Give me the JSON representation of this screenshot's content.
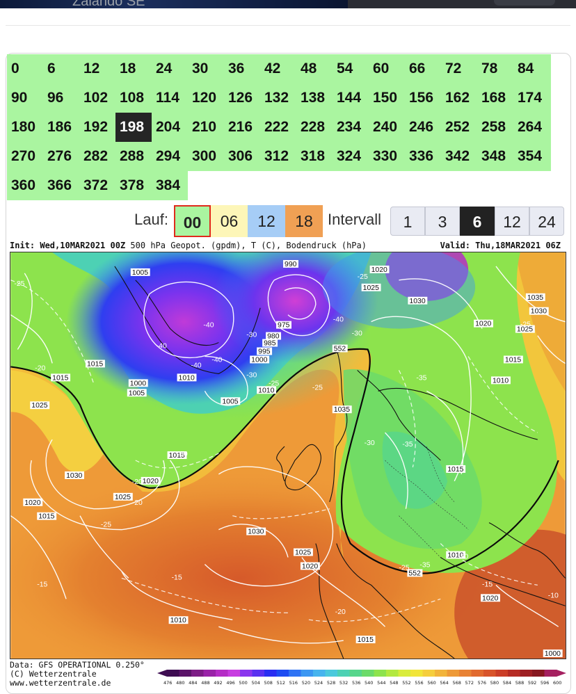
{
  "top": {
    "partial_text": "Zalando SE"
  },
  "steps": {
    "values": [
      "0",
      "6",
      "12",
      "18",
      "24",
      "30",
      "36",
      "42",
      "48",
      "54",
      "60",
      "66",
      "72",
      "78",
      "84",
      "90",
      "96",
      "102",
      "108",
      "114",
      "120",
      "126",
      "132",
      "138",
      "144",
      "150",
      "156",
      "162",
      "168",
      "174",
      "180",
      "186",
      "192",
      "198",
      "204",
      "210",
      "216",
      "222",
      "228",
      "234",
      "240",
      "246",
      "252",
      "258",
      "264",
      "270",
      "276",
      "282",
      "288",
      "294",
      "300",
      "306",
      "312",
      "318",
      "324",
      "330",
      "336",
      "342",
      "348",
      "354",
      "360",
      "366",
      "372",
      "378",
      "384"
    ],
    "selected": "198",
    "selected_color": "#252525",
    "cell_color": "#aaf5a0"
  },
  "lauf": {
    "label": "Lauf:",
    "options": [
      {
        "label": "00",
        "color": "#aaf5a0",
        "selected": true
      },
      {
        "label": "06",
        "color": "#fdf6b8",
        "selected": false
      },
      {
        "label": "12",
        "color": "#a6cdf6",
        "selected": false
      },
      {
        "label": "18",
        "color": "#f0a054",
        "selected": false
      }
    ],
    "selected_border": "#e02a1c"
  },
  "intervall": {
    "label": "Intervall",
    "options": [
      "1",
      "3",
      "6",
      "12",
      "24"
    ],
    "selected": "6"
  },
  "map": {
    "init_label": "Init:",
    "init": "Wed,10MAR2021 00Z",
    "title": "500 hPa Geopot. (gpdm), T (C), Bodendruck (hPa)",
    "valid_label": "Valid:",
    "valid": "Thu,18MAR2021 06Z",
    "pressure_labels": [
      "1005",
      "990",
      "1020",
      "1025",
      "1030",
      "1035",
      "1030",
      "975",
      "980",
      "985",
      "995",
      "1000",
      "1020",
      "1025",
      "1015",
      "1015",
      "1000",
      "1005",
      "1010",
      "1005",
      "1010",
      "1015",
      "1025",
      "1035",
      "1010",
      "1015",
      "1030",
      "1020",
      "1025",
      "1020",
      "1015",
      "1030",
      "1025",
      "1020",
      "1015",
      "1010",
      "1020",
      "1010",
      "1015",
      "1000"
    ],
    "temperature_labels": [
      "-25",
      "-40",
      "-40",
      "-40",
      "-40",
      "-30",
      "-30",
      "-20",
      "-25",
      "-25",
      "-35",
      "-40",
      "-35",
      "-30",
      "-30",
      "-25",
      "-35",
      "-20",
      "-25",
      "-15",
      "-15",
      "-20",
      "-20",
      "-20",
      "-10",
      "-15",
      "-25",
      "-30",
      "-25"
    ],
    "geopot_labels": [
      "552",
      "552"
    ]
  },
  "footer": {
    "line1": "Data: GFS OPERATIONAL 0.250°",
    "line2": "(C) Wetterzentrale",
    "line3": "www.wetterzentrale.de",
    "scale_values": [
      "476",
      "480",
      "484",
      "488",
      "492",
      "496",
      "500",
      "504",
      "508",
      "512",
      "516",
      "520",
      "524",
      "528",
      "532",
      "536",
      "540",
      "544",
      "548",
      "552",
      "556",
      "560",
      "564",
      "568",
      "572",
      "576",
      "580",
      "584",
      "588",
      "592",
      "596",
      "600"
    ],
    "scale_colors": [
      "#3e0d52",
      "#5b1469",
      "#7d1d86",
      "#9a23a8",
      "#b52dc6",
      "#c83de0",
      "#8a36ee",
      "#5a31f0",
      "#2a2ef2",
      "#1e4cf2",
      "#2f73f4",
      "#3c97f2",
      "#47b4ee",
      "#4bc9dc",
      "#4dd1b4",
      "#57d68c",
      "#6cdb6a",
      "#8de34d",
      "#b3e940",
      "#d9ec3c",
      "#f1e53a",
      "#f5ce3d",
      "#f2b43b",
      "#ee9a38",
      "#e88234",
      "#e16a2f",
      "#d8542b",
      "#cb3e28",
      "#b62c25",
      "#9e1f23",
      "#871820",
      "#a52060"
    ]
  }
}
